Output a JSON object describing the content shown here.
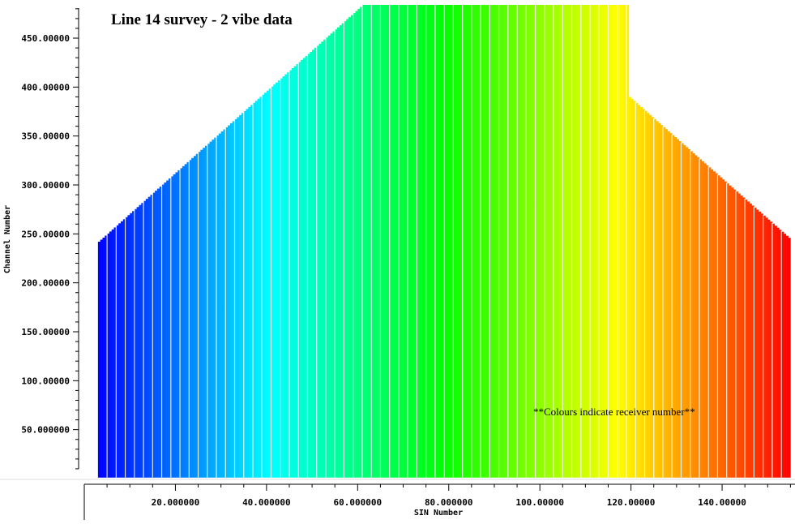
{
  "chart_data": {
    "type": "heatmap",
    "title": "Line 14 survey - 2 vibe data",
    "annotation": "**Colours indicate receiver number**",
    "xlabel": "SIN Number",
    "ylabel": "Channel Number",
    "xlim": [
      0,
      156
    ],
    "ylim": [
      0,
      484
    ],
    "x_ticks": [
      {
        "value": 20,
        "label": "20.000000"
      },
      {
        "value": 40,
        "label": "40.000000"
      },
      {
        "value": 60,
        "label": "60.000000"
      },
      {
        "value": 80,
        "label": "80.000000"
      },
      {
        "value": 100,
        "label": "100.00000"
      },
      {
        "value": 120,
        "label": "120.00000"
      },
      {
        "value": 140,
        "label": "140.00000"
      }
    ],
    "y_ticks": [
      {
        "value": 50,
        "label": "50.000000"
      },
      {
        "value": 100,
        "label": "100.00000"
      },
      {
        "value": 150,
        "label": "150.00000"
      },
      {
        "value": 200,
        "label": "200.00000"
      },
      {
        "value": 250,
        "label": "250.00000"
      },
      {
        "value": 300,
        "label": "300.00000"
      },
      {
        "value": 350,
        "label": "350.00000"
      },
      {
        "value": 400,
        "label": "400.00000"
      },
      {
        "value": 450,
        "label": "450.00000"
      }
    ],
    "channel_envelope": {
      "sin_start": 3,
      "sin_end": 155,
      "channel_min": 1,
      "segments": [
        {
          "sin_from": 3,
          "sin_to": 61,
          "channel_from": 242,
          "channel_to": 484
        },
        {
          "sin_from": 61,
          "sin_to": 119,
          "channel_from": 484,
          "channel_to": 484
        },
        {
          "sin_from": 119,
          "sin_to": 155,
          "channel_from": 392,
          "channel_to": 244
        }
      ]
    },
    "color_scale": {
      "variable": "receiver number",
      "colors": [
        "#0000ff",
        "#00ffff",
        "#00ff00",
        "#ffff00",
        "#ff0000"
      ]
    },
    "grid": false,
    "legend": "none"
  }
}
